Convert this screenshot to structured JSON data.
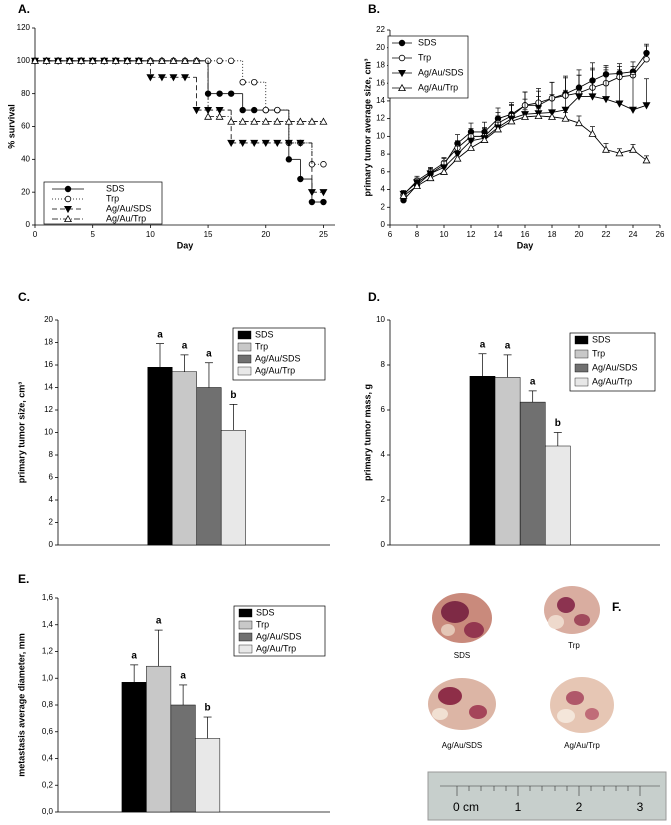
{
  "chart_data": [
    {
      "panel": "A.",
      "type": "step",
      "xlabel": "Day",
      "ylabel": "% survival",
      "x": [
        0,
        1,
        2,
        3,
        4,
        5,
        6,
        7,
        8,
        9,
        10,
        11,
        12,
        13,
        14,
        15,
        16,
        17,
        18,
        19,
        20,
        21,
        22,
        23,
        24,
        25
      ],
      "xlim": [
        0,
        26
      ],
      "xticks": [
        0,
        5,
        10,
        15,
        20,
        25
      ],
      "ylim": [
        0,
        120
      ],
      "yticks": [
        0,
        20,
        40,
        60,
        80,
        100,
        120
      ],
      "legend": "lower left",
      "series": [
        {
          "name": "SDS",
          "color": "#000000",
          "marker": "circle-filled",
          "dash": "solid",
          "values": [
            100,
            100,
            100,
            100,
            100,
            100,
            100,
            100,
            100,
            100,
            100,
            100,
            100,
            100,
            100,
            80,
            80,
            80,
            70,
            70,
            70,
            70,
            40,
            28,
            14,
            14
          ]
        },
        {
          "name": "Trp",
          "color": "#000000",
          "marker": "circle-open",
          "dash": "dotted",
          "values": [
            100,
            100,
            100,
            100,
            100,
            100,
            100,
            100,
            100,
            100,
            100,
            100,
            100,
            100,
            100,
            100,
            100,
            100,
            87,
            87,
            70,
            70,
            50,
            50,
            37,
            37
          ]
        },
        {
          "name": "Ag/Au/SDS",
          "color": "#000000",
          "marker": "triangle-down-filled",
          "dash": "dashed",
          "values": [
            100,
            100,
            100,
            100,
            100,
            100,
            100,
            100,
            100,
            100,
            90,
            90,
            90,
            90,
            70,
            70,
            70,
            50,
            50,
            50,
            50,
            50,
            50,
            50,
            20,
            20
          ]
        },
        {
          "name": "Ag/Au/Trp",
          "color": "#000000",
          "marker": "triangle-up-open",
          "dash": "dashdot",
          "values": [
            100,
            100,
            100,
            100,
            100,
            100,
            100,
            100,
            100,
            100,
            100,
            100,
            100,
            100,
            100,
            66,
            66,
            63,
            63,
            63,
            63,
            63,
            63,
            63,
            63,
            63
          ]
        }
      ]
    },
    {
      "panel": "B.",
      "type": "line",
      "xlabel": "Day",
      "ylabel": "primary tumor average size, cm³",
      "x": [
        7,
        8,
        9,
        10,
        11,
        12,
        13,
        14,
        15,
        16,
        17,
        18,
        19,
        20,
        21,
        22,
        23,
        24,
        25
      ],
      "xlim": [
        6,
        26
      ],
      "xticks": [
        6,
        8,
        10,
        12,
        14,
        16,
        18,
        20,
        22,
        24,
        26
      ],
      "ylim": [
        0,
        22
      ],
      "yticks": [
        0,
        2,
        4,
        6,
        8,
        10,
        12,
        14,
        16,
        18,
        20,
        22
      ],
      "legend": "upper left",
      "series": [
        {
          "name": "SDS",
          "color": "#000000",
          "marker": "circle-filled",
          "values": [
            2.8,
            4.5,
            5.8,
            6.8,
            9.2,
            10.5,
            10.5,
            12,
            12.5,
            13.5,
            13.5,
            14.3,
            14.8,
            15.5,
            16.3,
            17,
            17.1,
            17.3,
            19.4
          ],
          "errors": [
            0.5,
            0.6,
            0.6,
            0.7,
            1,
            1,
            1.1,
            1.2,
            1.3,
            1.5,
            1.6,
            1.8,
            2,
            2,
            2,
            0.8,
            0.8,
            0.6,
            1
          ]
        },
        {
          "name": "Trp",
          "color": "#000000",
          "marker": "circle-open",
          "values": [
            3.4,
            5,
            6,
            7,
            8.7,
            10,
            10,
            11.5,
            12.3,
            13.5,
            13.8,
            14.3,
            14.6,
            14.9,
            15.5,
            16,
            16.7,
            16.9,
            18.7
          ],
          "errors": [
            0.4,
            0.5,
            0.5,
            0.6,
            0.8,
            0.9,
            1,
            1.2,
            1.3,
            1.5,
            1.6,
            1.8,
            2,
            2,
            2.2,
            2,
            1.5,
            1.5,
            1.5
          ]
        },
        {
          "name": "Ag/Au/SDS",
          "color": "#000000",
          "marker": "triangle-down-filled",
          "values": [
            3.5,
            4.8,
            5.8,
            6.5,
            8,
            9.5,
            9.8,
            11,
            12,
            12.5,
            12.6,
            12.7,
            13,
            14.5,
            14.5,
            14.2,
            13.7,
            13,
            13.5
          ],
          "errors": [
            0.4,
            0.5,
            0.6,
            0.7,
            0.9,
            1,
            1.1,
            1.3,
            1.5,
            1.7,
            1.9,
            2,
            2.2,
            2.4,
            3,
            3.3,
            3.8,
            4,
            3
          ]
        },
        {
          "name": "Ag/Au/Trp",
          "color": "#000000",
          "marker": "triangle-up-open",
          "values": [
            3.3,
            4.4,
            5.3,
            6,
            7.5,
            8.7,
            9.6,
            10.8,
            11.7,
            12.2,
            12.3,
            12.2,
            12,
            11.5,
            10.3,
            8.5,
            8.1,
            8.5,
            7.3
          ],
          "errors": [
            0.3,
            0.4,
            0.4,
            0.5,
            0.6,
            0.7,
            0.8,
            0.8,
            0.9,
            0.8,
            0.8,
            0.7,
            0.7,
            0.8,
            0.8,
            0.7,
            0.5,
            0.6,
            0.5
          ]
        }
      ]
    },
    {
      "panel": "C.",
      "type": "bar",
      "ylabel": "primary tumor size, cm³",
      "categories": [
        "SDS",
        "Trp",
        "Ag/Au/SDS",
        "Ag/Au/Trp"
      ],
      "colors": [
        "#000000",
        "#c8c8c8",
        "#707070",
        "#e8e8e8"
      ],
      "values": [
        15.8,
        15.4,
        14,
        10.2
      ],
      "errors": [
        2.1,
        1.5,
        2.2,
        2.3
      ],
      "annotations": [
        "a",
        "a",
        "a",
        "b"
      ],
      "ylim": [
        0,
        20
      ],
      "yticks": [
        0,
        2,
        4,
        6,
        8,
        10,
        12,
        14,
        16,
        18,
        20
      ],
      "legend": "upper right"
    },
    {
      "panel": "D.",
      "type": "bar",
      "ylabel": "primary tumor mass, g",
      "categories": [
        "SDS",
        "Trp",
        "Ag/Au/SDS",
        "Ag/Au/Trp"
      ],
      "colors": [
        "#000000",
        "#c8c8c8",
        "#707070",
        "#e8e8e8"
      ],
      "values": [
        7.5,
        7.45,
        6.35,
        4.4
      ],
      "errors": [
        1.0,
        1.0,
        0.5,
        0.6
      ],
      "annotations": [
        "a",
        "a",
        "a",
        "b"
      ],
      "ylim": [
        0,
        10
      ],
      "yticks": [
        0,
        2,
        4,
        6,
        8,
        10
      ],
      "legend": "upper right"
    },
    {
      "panel": "E.",
      "type": "bar",
      "ylabel": "metastasis average diameter, mm",
      "categories": [
        "SDS",
        "Trp",
        "Ag/Au/SDS",
        "Ag/Au/Trp"
      ],
      "colors": [
        "#000000",
        "#c8c8c8",
        "#707070",
        "#e8e8e8"
      ],
      "values": [
        0.97,
        1.09,
        0.8,
        0.55
      ],
      "errors": [
        0.13,
        0.27,
        0.15,
        0.16
      ],
      "annotations": [
        "a",
        "a",
        "a",
        "b"
      ],
      "ylim": [
        0,
        1.6
      ],
      "yticks": [
        {
          "value": 0,
          "label": "0,0"
        },
        {
          "value": 0.2,
          "label": "0,2"
        },
        {
          "value": 0.4,
          "label": "0,4"
        },
        {
          "value": 0.6,
          "label": "0,6"
        },
        {
          "value": 0.8,
          "label": "0,8"
        },
        {
          "value": 1,
          "label": "1,0"
        },
        {
          "value": 1.2,
          "label": "1,2"
        },
        {
          "value": 1.4,
          "label": "1,4"
        },
        {
          "value": 1.6,
          "label": "1,6"
        }
      ],
      "legend": "upper right"
    }
  ],
  "photo": {
    "panel": "F.",
    "captions": [
      "SDS",
      "Trp",
      "Ag/Au/SDS",
      "Ag/Au/Trp"
    ],
    "ruler_labels": [
      "0 cm",
      "1",
      "2",
      "3"
    ]
  }
}
